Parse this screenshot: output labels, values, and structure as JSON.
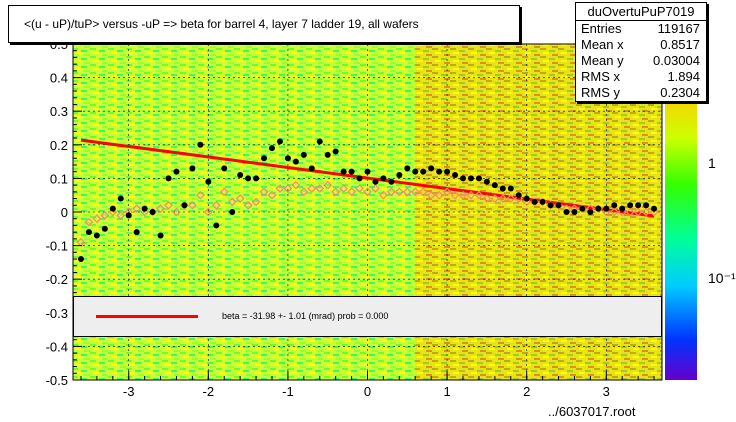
{
  "title": "<(u - uP)/tuP> versus  -uP => beta for barrel 4, layer 7 ladder 19, all wafers",
  "stats": {
    "name": "duOvertuPuP7019",
    "rows": [
      {
        "label": "Entries",
        "value": "119167"
      },
      {
        "label": "Mean x",
        "value": "0.8517"
      },
      {
        "label": "Mean y",
        "value": "0.03004"
      },
      {
        "label": "RMS x",
        "value": "1.894"
      },
      {
        "label": "RMS y",
        "value": "0.2304"
      }
    ]
  },
  "legend_text": "beta =  -31.98 +-  1.01 (mrad) prob = 0.000",
  "footer": "../6037017.root",
  "colors": {
    "fit": "#ff0000",
    "profile_black": "#000000",
    "profile_open": "#ff8080",
    "frame_bg": "#ffff00"
  },
  "chart_data": {
    "type": "scatter",
    "xlim": [
      -3.7,
      3.7
    ],
    "ylim": [
      -0.5,
      0.5
    ],
    "x_ticks": [
      -3,
      -2,
      -1,
      0,
      1,
      2,
      3
    ],
    "x_tick_labels": [
      "-3",
      "-2",
      "-1",
      "0",
      "1",
      "2",
      "3"
    ],
    "y_ticks": [
      -0.5,
      -0.4,
      -0.3,
      -0.2,
      -0.1,
      0,
      0.1,
      0.2,
      0.3,
      0.4,
      0.5
    ],
    "y_tick_labels": [
      "-0.5",
      "-0.4",
      "-0.3",
      "-0.2",
      "-0.1",
      "0",
      "0.1",
      "0.2",
      "0.3",
      "0.4",
      "0.5"
    ],
    "z_tick_labels": [
      "1",
      "10⁻¹"
    ],
    "grid": true,
    "fit_line": {
      "x": [
        -3.6,
        3.6
      ],
      "y": [
        0.214,
        -0.012
      ]
    },
    "series": [
      {
        "marker": "filled-circle",
        "x": [
          -3.6,
          -3.5,
          -3.4,
          -3.3,
          -3.2,
          -3.1,
          -3.0,
          -2.9,
          -2.8,
          -2.7,
          -2.6,
          -2.5,
          -2.4,
          -2.3,
          -2.2,
          -2.1,
          -2.0,
          -1.9,
          -1.8,
          -1.7,
          -1.6,
          -1.5,
          -1.4,
          -1.3,
          -1.2,
          -1.1,
          -1.0,
          -0.9,
          -0.8,
          -0.7,
          -0.6,
          -0.5,
          -0.4,
          -0.3,
          -0.2,
          -0.1,
          0.0,
          0.1,
          0.2,
          0.3,
          0.4,
          0.5,
          0.6,
          0.7,
          0.8,
          0.9,
          1.0,
          1.1,
          1.2,
          1.3,
          1.4,
          1.5,
          1.6,
          1.7,
          1.8,
          1.9,
          2.0,
          2.1,
          2.2,
          2.3,
          2.4,
          2.5,
          2.6,
          2.7,
          2.8,
          2.9,
          3.0,
          3.1,
          3.2,
          3.3,
          3.4,
          3.5,
          3.6
        ],
        "y": [
          -0.14,
          -0.06,
          -0.07,
          -0.05,
          0.01,
          0.04,
          -0.01,
          -0.06,
          0.01,
          0.0,
          -0.07,
          0.1,
          0.12,
          0.02,
          0.13,
          0.2,
          0.09,
          -0.04,
          0.13,
          0.0,
          0.11,
          0.1,
          0.1,
          0.16,
          0.19,
          0.21,
          0.16,
          0.15,
          0.17,
          0.13,
          0.21,
          0.17,
          0.18,
          0.12,
          0.12,
          0.1,
          0.12,
          0.09,
          0.1,
          0.09,
          0.11,
          0.13,
          0.12,
          0.12,
          0.13,
          0.12,
          0.12,
          0.11,
          0.1,
          0.1,
          0.1,
          0.09,
          0.08,
          0.07,
          0.07,
          0.05,
          0.04,
          0.03,
          0.03,
          0.02,
          0.02,
          0.0,
          0.0,
          0.01,
          0.0,
          0.01,
          0.01,
          0.02,
          0.01,
          0.02,
          0.02,
          0.02,
          0.01
        ]
      },
      {
        "marker": "open-diamond",
        "x": [
          -3.6,
          -3.5,
          -3.4,
          -3.3,
          -3.2,
          -3.1,
          -3.0,
          -2.9,
          -2.8,
          -2.7,
          -2.6,
          -2.5,
          -2.4,
          -2.3,
          -2.2,
          -2.1,
          -2.0,
          -1.9,
          -1.8,
          -1.7,
          -1.6,
          -1.5,
          -1.4,
          -1.3,
          -1.2,
          -1.1,
          -1.0,
          -0.9,
          -0.8,
          -0.7,
          -0.6,
          -0.5,
          -0.4,
          -0.3,
          -0.2,
          -0.1,
          0.0,
          0.1,
          0.2,
          0.3,
          0.4,
          0.5,
          0.6,
          0.7,
          0.8,
          0.9,
          1.0,
          1.1,
          1.2,
          1.3,
          1.4,
          1.5,
          1.6,
          1.7,
          1.8,
          1.9,
          2.0,
          2.1,
          2.2,
          2.3,
          2.4,
          2.5,
          2.6,
          2.7,
          2.8,
          2.9,
          3.0,
          3.1,
          3.2,
          3.3,
          3.4,
          3.5,
          3.6
        ],
        "y": [
          -0.09,
          -0.03,
          -0.02,
          -0.01,
          0.0,
          -0.01,
          0.0,
          0.01,
          0.0,
          0.0,
          0.01,
          0.02,
          0.0,
          0.02,
          0.02,
          0.05,
          0.0,
          0.02,
          0.06,
          0.03,
          0.04,
          0.02,
          0.03,
          0.06,
          0.05,
          0.07,
          0.07,
          0.08,
          0.06,
          0.07,
          0.07,
          0.08,
          0.06,
          0.07,
          0.06,
          0.07,
          0.06,
          0.07,
          0.05,
          0.06,
          0.06,
          0.06,
          0.06,
          0.06,
          0.05,
          0.05,
          0.06,
          0.05,
          0.05,
          0.05,
          0.05,
          0.04,
          0.04,
          0.04,
          0.04,
          0.04,
          0.03,
          0.03,
          0.03,
          0.02,
          0.02,
          0.01,
          0.01,
          0.01,
          0.01,
          0.01,
          0.0,
          0.0,
          0.0,
          0.0,
          0.0,
          0.0,
          0.0
        ]
      }
    ]
  }
}
